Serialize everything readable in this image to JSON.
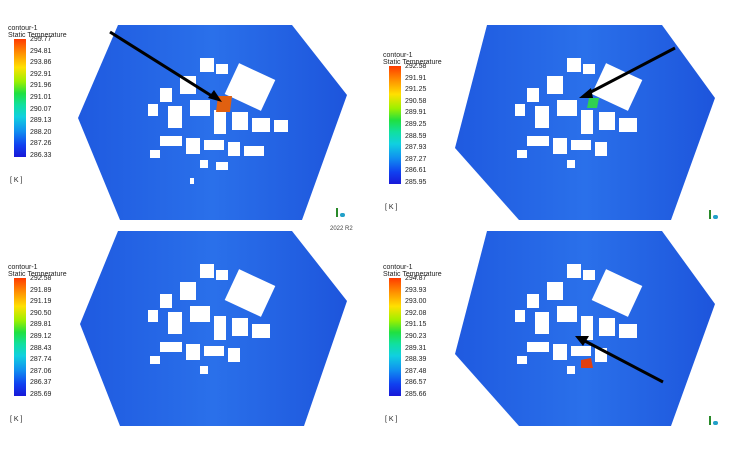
{
  "panels": [
    {
      "legend_name": "contour-1",
      "legend_variable": "Static Temperature",
      "legend_unit": "[ K ]",
      "ticks": [
        "295.77",
        "294.81",
        "293.86",
        "292.91",
        "291.96",
        "291.01",
        "290.07",
        "289.13",
        "288.20",
        "287.26",
        "286.33"
      ],
      "hotspot_color": "#e06010",
      "has_arrow": true
    },
    {
      "legend_name": "contour-1",
      "legend_variable": "Static Temperature",
      "legend_unit": "[ K ]",
      "ticks": [
        "292.58",
        "291.91",
        "291.25",
        "290.58",
        "289.91",
        "289.25",
        "288.59",
        "287.93",
        "287.27",
        "286.61",
        "285.95"
      ],
      "hotspot_color": "#30d050",
      "has_arrow": true
    },
    {
      "legend_name": "contour-1",
      "legend_variable": "Static Temperature",
      "legend_unit": "[ K ]",
      "ticks": [
        "292.58",
        "291.89",
        "291.19",
        "290.50",
        "289.81",
        "289.12",
        "288.43",
        "287.74",
        "287.06",
        "286.37",
        "285.69"
      ],
      "hotspot_color": null,
      "has_arrow": false
    },
    {
      "legend_name": "contour-1",
      "legend_variable": "Static Temperature",
      "legend_unit": "[ K ]",
      "ticks": [
        "294.87",
        "293.93",
        "293.00",
        "292.08",
        "291.15",
        "290.23",
        "289.31",
        "288.39",
        "287.48",
        "286.57",
        "285.66"
      ],
      "hotspot_color": "#e04010",
      "has_arrow": true
    }
  ],
  "watermark": "2022 R2",
  "colors": {
    "field": "#1a4fd8",
    "field_light": "#2a78e8",
    "buildings": "#ffffff",
    "arrow": "#000000"
  }
}
